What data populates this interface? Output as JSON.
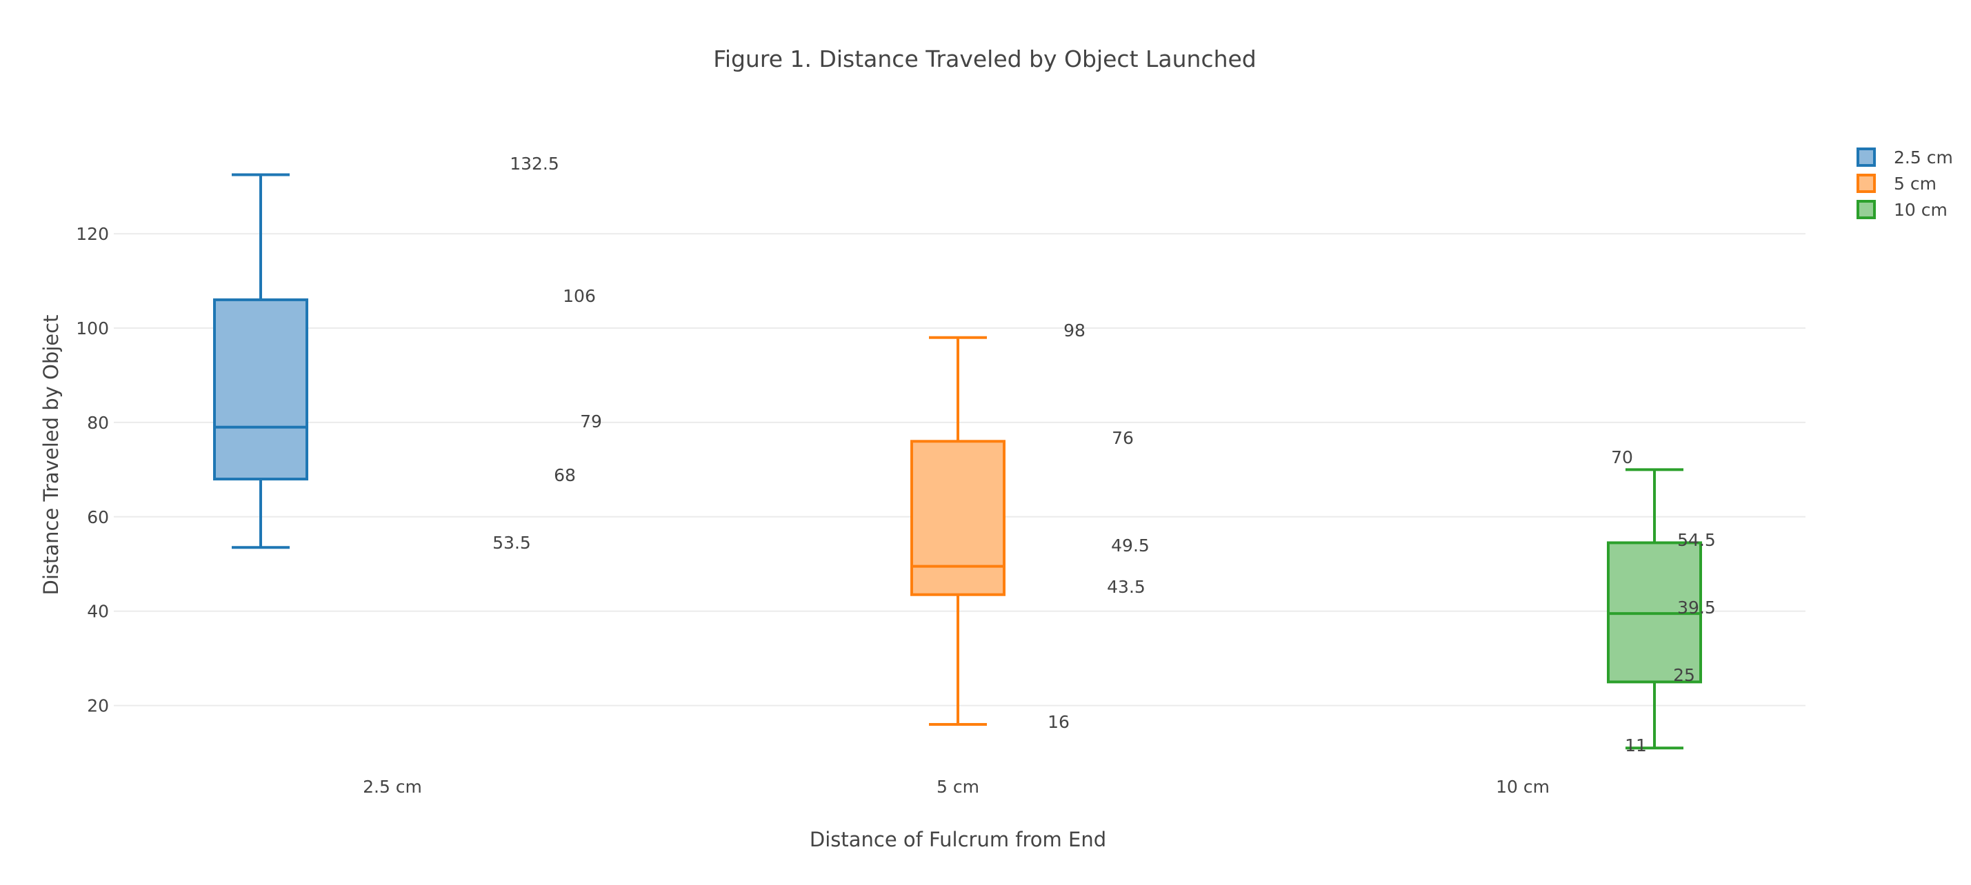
{
  "chart_data": {
    "type": "box",
    "title": "Figure 1. Distance Traveled by Object Launched",
    "xlabel": "Distance of Fulcrum from End",
    "ylabel": "Distance Traveled by Object",
    "categories": [
      "2.5 cm",
      "5 cm",
      "10 cm"
    ],
    "ylim": [
      4,
      145
    ],
    "yticks": [
      20,
      40,
      60,
      80,
      100,
      120
    ],
    "grid": true,
    "legend": "top-right",
    "series": [
      {
        "name": "2.5 cm",
        "color": "#1f77b4",
        "fill": "#8fb9dc",
        "min": 53.5,
        "q1": 68,
        "median": 79,
        "q3": 106,
        "max": 132.5,
        "labels": [
          "132.5",
          "106",
          "79",
          "68",
          "53.5"
        ]
      },
      {
        "name": "5 cm",
        "color": "#ff7f0e",
        "fill": "#ffbf86",
        "min": 16,
        "q1": 43.5,
        "median": 49.5,
        "q3": 76,
        "max": 98,
        "labels": [
          "98",
          "76",
          "49.5",
          "43.5",
          "16"
        ]
      },
      {
        "name": "10 cm",
        "color": "#2ca02c",
        "fill": "#95cf95",
        "min": 11,
        "q1": 25,
        "median": 39.5,
        "q3": 54.5,
        "max": 70,
        "labels": [
          "70",
          "54.5",
          "39.5",
          "25",
          "11"
        ]
      }
    ]
  }
}
